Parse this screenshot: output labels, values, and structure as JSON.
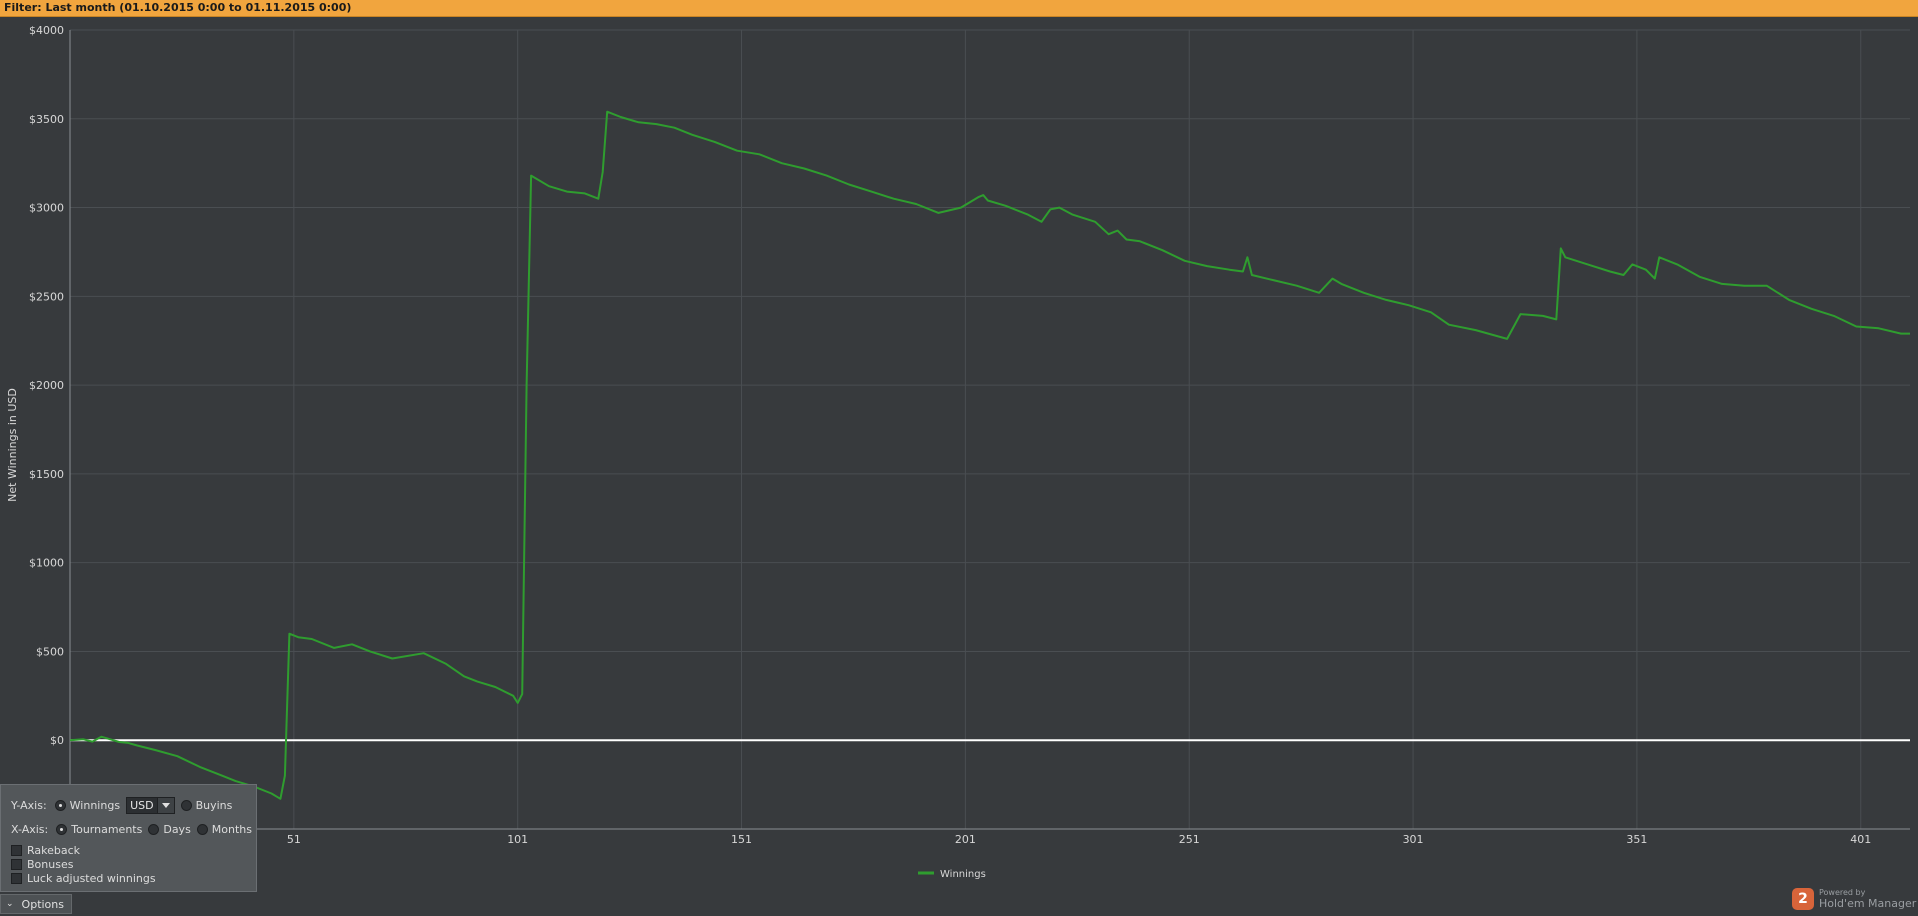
{
  "filter": {
    "label": "Filter:",
    "text": "Last month (01.10.2015 0:00 to 01.11.2015 0:00)"
  },
  "colors": {
    "line": "#2f9d2f",
    "zero_line": "#ffffff",
    "grid": "#4a4e52",
    "axis_text": "#d8d8d8"
  },
  "chart_data": {
    "type": "line",
    "title": "",
    "xlabel": "",
    "ylabel": "Net Winnings in USD",
    "xlim": [
      1,
      412
    ],
    "ylim": [
      -500,
      4000
    ],
    "x_ticks": [
      51,
      101,
      151,
      201,
      251,
      301,
      351,
      401
    ],
    "x_tick_labels": [
      "51",
      "101",
      "151",
      "201",
      "251",
      "301",
      "351",
      "401"
    ],
    "y_ticks": [
      0,
      500,
      1000,
      1500,
      2000,
      2500,
      3000,
      3500,
      4000
    ],
    "y_tick_labels": [
      "$0",
      "$500",
      "$1000",
      "$1500",
      "$2000",
      "$2500",
      "$3000",
      "$3500",
      "$4000"
    ],
    "grid": true,
    "legend": "bottom-center",
    "series": [
      {
        "name": "Winnings",
        "x": [
          1,
          4,
          6,
          8,
          10,
          12,
          14,
          16,
          20,
          25,
          30,
          35,
          38,
          42,
          46,
          48,
          49,
          50,
          52,
          55,
          60,
          64,
          68,
          73,
          80,
          85,
          89,
          92,
          96,
          100,
          101,
          102,
          103,
          104,
          108,
          112,
          116,
          119,
          120,
          121,
          124,
          128,
          132,
          136,
          140,
          145,
          150,
          155,
          160,
          165,
          170,
          175,
          180,
          185,
          190,
          195,
          200,
          204,
          205,
          206,
          210,
          215,
          218,
          220,
          222,
          225,
          230,
          233,
          235,
          237,
          240,
          245,
          250,
          255,
          260,
          263,
          264,
          265,
          270,
          275,
          280,
          283,
          285,
          290,
          295,
          300,
          305,
          309,
          315,
          322,
          325,
          330,
          333,
          334,
          335,
          340,
          345,
          348,
          350,
          353,
          355,
          356,
          360,
          365,
          370,
          375,
          380,
          385,
          390,
          395,
          400,
          405,
          410,
          412
        ],
        "values": [
          0,
          5,
          -8,
          20,
          5,
          -10,
          -15,
          -30,
          -55,
          -90,
          -150,
          -200,
          -230,
          -260,
          -300,
          -330,
          -200,
          600,
          580,
          570,
          520,
          540,
          500,
          460,
          490,
          430,
          360,
          330,
          300,
          250,
          210,
          260,
          2000,
          3180,
          3120,
          3090,
          3080,
          3050,
          3200,
          3540,
          3510,
          3480,
          3470,
          3450,
          3410,
          3370,
          3320,
          3300,
          3250,
          3220,
          3180,
          3130,
          3090,
          3050,
          3020,
          2970,
          3000,
          3060,
          3070,
          3040,
          3010,
          2960,
          2920,
          2990,
          3000,
          2960,
          2920,
          2850,
          2870,
          2820,
          2810,
          2760,
          2700,
          2670,
          2650,
          2640,
          2720,
          2620,
          2590,
          2560,
          2520,
          2600,
          2570,
          2520,
          2480,
          2450,
          2410,
          2340,
          2310,
          2260,
          2400,
          2390,
          2370,
          2770,
          2720,
          2680,
          2640,
          2620,
          2680,
          2650,
          2600,
          2720,
          2680,
          2610,
          2570,
          2560,
          2560,
          2480,
          2430,
          2390,
          2330,
          2320,
          2290,
          2290
        ]
      }
    ]
  },
  "options": {
    "y_axis_label": "Y-Axis:",
    "y_winnings": "Winnings",
    "currency": "USD",
    "y_buyins": "Buyins",
    "x_axis_label": "X-Axis:",
    "x_tournaments": "Tournaments",
    "x_days": "Days",
    "x_months": "Months",
    "rakeback": "Rakeback",
    "bonuses": "Bonuses",
    "luck_adjusted": "Luck adjusted winnings",
    "toggle_label": "Options"
  },
  "brand": {
    "powered_by": "Powered by",
    "name": "Hold'em Manager",
    "logo_digit": "2"
  }
}
